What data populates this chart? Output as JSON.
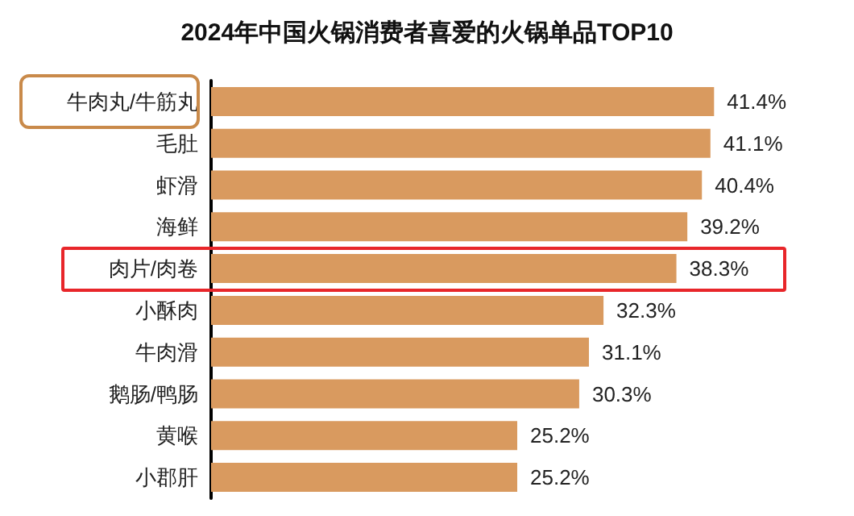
{
  "chart_data": {
    "type": "bar",
    "orientation": "horizontal",
    "title": "2024年中国火锅消费者喜爱的火锅单品TOP10",
    "categories": [
      "牛肉丸/牛筋丸",
      "毛肚",
      "虾滑",
      "海鲜",
      "肉片/肉卷",
      "小酥肉",
      "牛肉滑",
      "鹅肠/鸭肠",
      "黄喉",
      "小郡肝"
    ],
    "values": [
      41.4,
      41.1,
      40.4,
      39.2,
      38.3,
      32.3,
      31.1,
      30.3,
      25.2,
      25.2
    ],
    "value_labels": [
      "41.4%",
      "41.1%",
      "40.4%",
      "39.2%",
      "38.3%",
      "32.3%",
      "31.1%",
      "30.3%",
      "25.2%",
      "25.2%"
    ],
    "color": "#d99a5f"
  }
}
